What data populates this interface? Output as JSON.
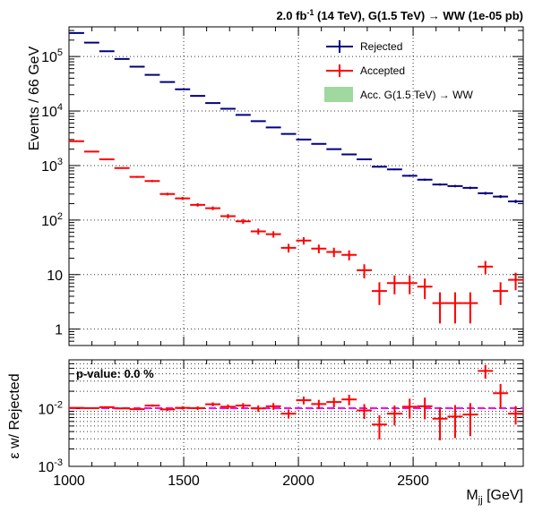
{
  "header": {
    "title_pre": "2.0 fb",
    "title_sup": "-1",
    "title_post": " (14 TeV), G(1.5 TeV) → WW (1e-05 pb)"
  },
  "legend": {
    "rejected": "Rejected",
    "accepted": "Accepted",
    "signal": "Acc. G(1.5 TeV) → WW"
  },
  "pvalue_label": "p-value: 0.0 %",
  "colors": {
    "rejected": "#000080",
    "accepted": "#ff0000",
    "signal": "#7fcc7f",
    "ratio_line": "#ff00ff"
  },
  "chart_data": [
    {
      "type": "scatter",
      "panel": "top",
      "ylabel": "Events / 66 GeV",
      "xlim": [
        1000,
        2980
      ],
      "ylim": [
        0.5,
        350000
      ],
      "yscale": "log",
      "grid": true,
      "legend_position": "top-right",
      "ytick_labels": [
        {
          "value": 1,
          "label": "1"
        },
        {
          "value": 10,
          "label": "10"
        },
        {
          "value": 100,
          "label": "10",
          "sup": "2"
        },
        {
          "value": 1000,
          "label": "10",
          "sup": "3"
        },
        {
          "value": 10000,
          "label": "10",
          "sup": "4"
        },
        {
          "value": 100000,
          "label": "10",
          "sup": "5"
        }
      ],
      "x": [
        1033,
        1099,
        1165,
        1231,
        1297,
        1363,
        1429,
        1495,
        1561,
        1627,
        1693,
        1759,
        1825,
        1891,
        1957,
        2023,
        2089,
        2155,
        2221,
        2287,
        2353,
        2419,
        2485,
        2551,
        2617,
        2683,
        2749,
        2815,
        2881,
        2947
      ],
      "series": [
        {
          "name": "Rejected",
          "values": [
            270000,
            180000,
            125000,
            90000,
            65000,
            46000,
            34000,
            25000,
            19000,
            14000,
            11000,
            8500,
            6500,
            5000,
            3800,
            3000,
            2500,
            2000,
            1600,
            1300,
            950,
            850,
            650,
            550,
            450,
            420,
            390,
            310,
            270,
            220
          ]
        },
        {
          "name": "Accepted",
          "values": [
            2800,
            1800,
            1300,
            900,
            620,
            520,
            300,
            250,
            190,
            165,
            118,
            95,
            62,
            55,
            31,
            42,
            30,
            26,
            23,
            12,
            5,
            7,
            7,
            6,
            3,
            3,
            3,
            14,
            5,
            8
          ]
        }
      ]
    },
    {
      "type": "scatter",
      "panel": "bottom",
      "xlabel": "M_jj [GeV]",
      "ylabel": "ε w/ Rejected",
      "xlim": [
        1000,
        2980
      ],
      "ylim": [
        0.001,
        0.07
      ],
      "yscale": "log",
      "grid": true,
      "ytick_labels": [
        {
          "value": 0.001,
          "label": "10",
          "sup": "-3"
        },
        {
          "value": 0.01,
          "label": "10",
          "sup": "-2"
        }
      ],
      "xtick_labels": [
        {
          "value": 1000,
          "label": "1000"
        },
        {
          "value": 1500,
          "label": "1500"
        },
        {
          "value": 2000,
          "label": "2000"
        },
        {
          "value": 2500,
          "label": "2500"
        }
      ],
      "reference_line": 0.0102,
      "x": [
        1033,
        1099,
        1165,
        1231,
        1297,
        1363,
        1429,
        1495,
        1561,
        1627,
        1693,
        1759,
        1825,
        1891,
        1957,
        2023,
        2089,
        2155,
        2221,
        2287,
        2353,
        2419,
        2485,
        2551,
        2617,
        2683,
        2749,
        2815,
        2881,
        2947
      ],
      "series": [
        {
          "name": "Accepted",
          "values": [
            0.0103,
            0.0102,
            0.0106,
            0.0101,
            0.0098,
            0.0113,
            0.0097,
            0.0103,
            0.0102,
            0.0119,
            0.0108,
            0.0113,
            0.0101,
            0.011,
            0.0082,
            0.014,
            0.012,
            0.013,
            0.0144,
            0.0093,
            0.0053,
            0.0082,
            0.0108,
            0.011,
            0.0067,
            0.0073,
            0.0079,
            0.045,
            0.0185,
            0.0082
          ]
        }
      ]
    }
  ]
}
